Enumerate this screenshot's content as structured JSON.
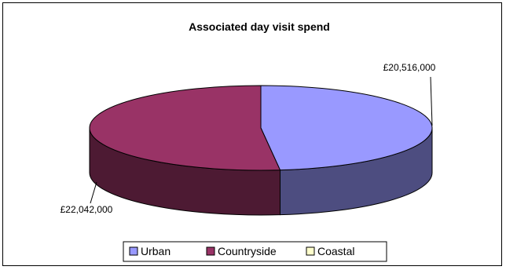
{
  "chart_data": {
    "type": "pie",
    "title": "Associated day visit spend",
    "categories": [
      "Urban",
      "Countryside",
      "Coastal"
    ],
    "values": [
      20516000,
      22042000,
      0
    ],
    "data_labels": [
      "£20,516,000",
      "£22,042,000",
      ""
    ],
    "colors": {
      "Urban": "#9999ff",
      "Countryside": "#993366",
      "Coastal": "#ffffcc"
    },
    "side_colors": {
      "Urban": "#4d4d80",
      "Countryside": "#4d1a33",
      "Coastal": "#80806a"
    },
    "legend_position": "bottom",
    "style": "3d"
  }
}
